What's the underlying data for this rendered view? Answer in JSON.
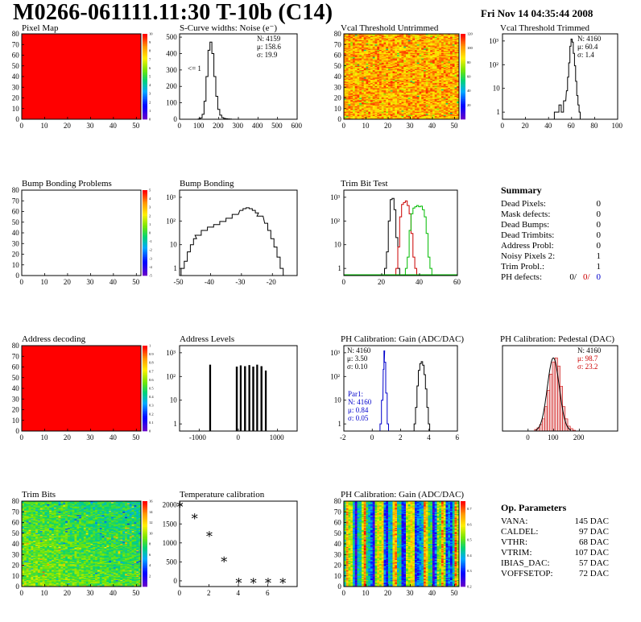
{
  "header": {
    "title": "M0266-061111.11:30 T-10b (C14)",
    "date": "Fri Nov 14 04:35:44 2008"
  },
  "chart_data": [
    {
      "type": "heatmap",
      "title": "Pixel Map",
      "xlim": [
        0,
        52
      ],
      "ylim": [
        0,
        80
      ],
      "xticks": [
        0,
        10,
        20,
        30,
        40,
        50
      ],
      "yticks": [
        0,
        10,
        20,
        30,
        40,
        50,
        60,
        70,
        80
      ],
      "fill": "uniform",
      "value": 10,
      "zlim": [
        0,
        10
      ],
      "zticks": [
        0,
        1,
        2,
        3,
        4,
        5,
        6,
        7,
        8,
        9,
        10
      ]
    },
    {
      "type": "line",
      "title": "S-Curve widths: Noise (e⁻)",
      "xlim": [
        0,
        600
      ],
      "ylim": [
        0,
        520
      ],
      "xticks": [
        0,
        100,
        200,
        300,
        400,
        500,
        600
      ],
      "yticks": [
        0,
        100,
        200,
        300,
        400,
        500
      ],
      "series": [
        {
          "x": [
            90,
            100,
            110,
            120,
            130,
            140,
            150,
            160,
            170,
            180,
            190,
            200,
            210,
            220,
            230,
            240,
            250,
            260,
            270,
            280
          ],
          "y": [
            0,
            2,
            8,
            30,
            110,
            260,
            420,
            470,
            400,
            260,
            140,
            60,
            25,
            10,
            5,
            3,
            2,
            1,
            0,
            0
          ]
        }
      ],
      "annotation": "<= 1",
      "stats": {
        "N": "N: 4159",
        "mean": "μ: 158.6",
        "sigma": "σ: 19.9"
      }
    },
    {
      "type": "heatmap",
      "title": "Vcal Threshold Untrimmed",
      "xlim": [
        0,
        52
      ],
      "ylim": [
        0,
        80
      ],
      "xticks": [
        0,
        10,
        20,
        30,
        40,
        50
      ],
      "yticks": [
        0,
        10,
        20,
        30,
        40,
        50,
        60,
        70,
        80
      ],
      "fill": "noise_orange",
      "zlim": [
        0,
        120
      ],
      "zticks": [
        20,
        40,
        60,
        80,
        100,
        120
      ]
    },
    {
      "type": "line",
      "title": "Vcal Threshold Trimmed",
      "log": true,
      "xlim": [
        0,
        100
      ],
      "ylim": [
        0.5,
        2000
      ],
      "xticks": [
        0,
        20,
        40,
        60,
        80,
        100
      ],
      "yticks": [
        1,
        10,
        100,
        1000
      ],
      "ytick_labels": [
        "1",
        "10",
        "10²",
        "10³"
      ],
      "series": [
        {
          "x": [
            46,
            48,
            50,
            52,
            54,
            56,
            57,
            58,
            59,
            60,
            61,
            62,
            63,
            64,
            65,
            66,
            67,
            68
          ],
          "y": [
            1,
            1,
            2,
            1,
            3,
            8,
            30,
            120,
            600,
            1200,
            900,
            300,
            90,
            20,
            5,
            2,
            1,
            0
          ]
        }
      ],
      "stats": {
        "N": "N: 4160",
        "mean": "μ: 60.4",
        "sigma": "σ:  1.4"
      }
    },
    {
      "type": "heatmap",
      "title": "Bump Bonding Problems",
      "xlim": [
        0,
        52
      ],
      "ylim": [
        0,
        80
      ],
      "xticks": [
        0,
        10,
        20,
        30,
        40,
        50
      ],
      "yticks": [
        0,
        10,
        20,
        30,
        40,
        50,
        60,
        70,
        80
      ],
      "fill": "empty",
      "zlim": [
        -5,
        5
      ],
      "zticks": [
        -5,
        -4,
        -3,
        -2,
        -1,
        0,
        1,
        2,
        3,
        4,
        5
      ]
    },
    {
      "type": "line",
      "title": "Bump Bonding",
      "log": true,
      "xlim": [
        -50,
        -12
      ],
      "ylim": [
        0.5,
        2000
      ],
      "xticks": [
        -50,
        -40,
        -30,
        -20
      ],
      "yticks": [
        1,
        10,
        100,
        1000
      ],
      "ytick_labels": [
        "1",
        "10",
        "10²",
        "10³"
      ],
      "series": [
        {
          "x": [
            -49,
            -48,
            -47,
            -46,
            -45,
            -44,
            -42,
            -40,
            -38,
            -36,
            -34,
            -32,
            -30,
            -29,
            -28,
            -27,
            -26,
            -25,
            -24,
            -22,
            -21,
            -20,
            -19,
            -18,
            -17,
            -16
          ],
          "y": [
            1,
            2,
            5,
            10,
            18,
            25,
            40,
            55,
            70,
            95,
            130,
            190,
            280,
            330,
            360,
            330,
            280,
            220,
            160,
            80,
            40,
            18,
            8,
            3,
            1,
            0
          ]
        }
      ]
    },
    {
      "type": "line",
      "title": "Trim Bit Test",
      "log": true,
      "xlim": [
        0,
        60
      ],
      "ylim": [
        0.5,
        2000
      ],
      "xticks": [
        0,
        20,
        40,
        60
      ],
      "yticks": [
        1,
        10,
        100,
        1000
      ],
      "ytick_labels": [
        "1",
        "10",
        "10²",
        "10³"
      ],
      "series": [
        {
          "color": "#000000",
          "x": [
            22,
            23,
            24,
            25,
            26,
            27,
            28,
            29
          ],
          "y": [
            1,
            5,
            100,
            800,
            900,
            300,
            20,
            1
          ]
        },
        {
          "color": "#cc0000",
          "x": [
            28,
            29,
            30,
            31,
            32,
            33,
            34,
            35,
            36,
            37,
            38
          ],
          "y": [
            1,
            8,
            150,
            500,
            600,
            700,
            450,
            200,
            30,
            3,
            1
          ]
        },
        {
          "color": "#00bb00",
          "x": [
            33,
            34,
            35,
            36,
            37,
            38,
            39,
            40,
            41,
            42,
            43,
            44,
            45,
            46
          ],
          "y": [
            1,
            3,
            40,
            200,
            350,
            400,
            450,
            400,
            420,
            300,
            150,
            30,
            3,
            1
          ]
        }
      ],
      "baseline_color": "#00bb00"
    },
    {
      "type": "table",
      "title": "Summary",
      "rows": [
        {
          "label": "Dead Pixels:",
          "value": "0"
        },
        {
          "label": "Mask defects:",
          "value": "0"
        },
        {
          "label": "Dead Bumps:",
          "value": "0"
        },
        {
          "label": "Dead Trimbits:",
          "value": "0"
        },
        {
          "label": "Address Probl:",
          "value": "0"
        },
        {
          "label": "Noisy Pixels 2:",
          "value": "1"
        },
        {
          "label": "Trim Probl.:",
          "value": "1"
        },
        {
          "label": "PH defects:",
          "values": [
            "0/",
            "0/",
            "0"
          ],
          "colors": [
            "#000000",
            "#cc0000",
            "#0000cc"
          ]
        }
      ]
    },
    {
      "type": "heatmap",
      "title": "Address decoding",
      "xlim": [
        0,
        52
      ],
      "ylim": [
        0,
        80
      ],
      "xticks": [
        0,
        10,
        20,
        30,
        40,
        50
      ],
      "yticks": [
        0,
        10,
        20,
        30,
        40,
        50,
        60,
        70,
        80
      ],
      "fill": "uniform",
      "value": 1,
      "zlim": [
        0,
        1
      ],
      "zticks": [
        0,
        0.1,
        0.2,
        0.3,
        0.4,
        0.5,
        0.6,
        0.7,
        0.8,
        0.9,
        1
      ]
    },
    {
      "type": "line",
      "title": "Address Levels",
      "log": true,
      "xlim": [
        -1500,
        1500
      ],
      "ylim": [
        0.5,
        2000
      ],
      "xticks": [
        -1000,
        0,
        1000
      ],
      "yticks": [
        1,
        10,
        100,
        1000
      ],
      "ytick_labels": [
        "1",
        "10",
        "10²",
        "10³"
      ],
      "spikes": [
        {
          "x": -720,
          "w": 22,
          "y": 300
        },
        {
          "x": -40,
          "w": 25,
          "y": 250
        },
        {
          "x": 60,
          "w": 22,
          "y": 280
        },
        {
          "x": 170,
          "w": 25,
          "y": 260
        },
        {
          "x": 280,
          "w": 22,
          "y": 290
        },
        {
          "x": 380,
          "w": 25,
          "y": 250
        },
        {
          "x": 480,
          "w": 22,
          "y": 300
        },
        {
          "x": 590,
          "w": 25,
          "y": 260
        },
        {
          "x": 700,
          "w": 22,
          "y": 170
        }
      ]
    },
    {
      "type": "line",
      "title": "PH Calibration: Gain (ADC/DAC)",
      "log": true,
      "xlim": [
        -2,
        6
      ],
      "ylim": [
        0.5,
        2000
      ],
      "xticks": [
        -2,
        0,
        2,
        4,
        6
      ],
      "yticks": [
        1,
        10,
        100,
        1000
      ],
      "ytick_labels": [
        "1",
        "10",
        "10²",
        "10³"
      ],
      "series": [
        {
          "color": "#000000",
          "x": [
            3.0,
            3.1,
            3.2,
            3.3,
            3.4,
            3.5,
            3.6,
            3.7,
            3.8,
            3.9,
            4.0
          ],
          "y": [
            1,
            5,
            40,
            180,
            350,
            420,
            300,
            120,
            30,
            5,
            1
          ]
        },
        {
          "color": "#0000cc",
          "x": [
            0.6,
            0.7,
            0.8,
            0.85,
            0.9,
            1.0,
            1.1
          ],
          "y": [
            1,
            10,
            200,
            1200,
            400,
            20,
            1
          ]
        }
      ],
      "stats": {
        "N": "N: 4160",
        "mean": "μ: 3.50",
        "sigma": "σ: 0.10"
      },
      "stats2": {
        "label": "Par1:",
        "N": "N: 4160",
        "mean": "μ: 0.84",
        "sigma": "σ: 0.05",
        "color": "#0000cc"
      }
    },
    {
      "type": "bar",
      "title": "PH Calibration: Pedestal (DAC)",
      "xlim": [
        -100,
        350
      ],
      "ylim": [
        0,
        105
      ],
      "xticks": [
        0,
        100,
        200
      ],
      "yticks": [],
      "series": [
        {
          "x": [
            30,
            40,
            50,
            60,
            70,
            80,
            90,
            100,
            110,
            120,
            130,
            140,
            150,
            160,
            170,
            180
          ],
          "y": [
            2,
            4,
            8,
            15,
            30,
            50,
            70,
            85,
            90,
            80,
            55,
            30,
            15,
            6,
            3,
            1
          ]
        }
      ],
      "stats": {
        "N": "N: 4160",
        "mean": "μ: 98.7",
        "sigma": "σ: 23.2"
      },
      "stats_colors": [
        "#000000",
        "#cc0000",
        "#cc0000"
      ]
    },
    {
      "type": "heatmap",
      "title": "Trim Bits",
      "xlim": [
        0,
        52
      ],
      "ylim": [
        0,
        80
      ],
      "xticks": [
        0,
        10,
        20,
        30,
        40,
        50
      ],
      "yticks": [
        0,
        10,
        20,
        30,
        40,
        50,
        60,
        70,
        80
      ],
      "fill": "noise_green",
      "zlim": [
        0,
        16
      ],
      "zticks": [
        2,
        4,
        6,
        8,
        10,
        12,
        14,
        16
      ]
    },
    {
      "type": "scatter",
      "title": "Temperature calibration",
      "xlim": [
        0,
        8
      ],
      "ylim": [
        -150,
        2100
      ],
      "xticks": [
        0,
        2,
        4,
        6
      ],
      "yticks": [
        0,
        500,
        1000,
        1500,
        2000
      ],
      "x": [
        0,
        1,
        2,
        3,
        4,
        5,
        6,
        7
      ],
      "y": [
        2000,
        1700,
        1230,
        560,
        0,
        0,
        0,
        0
      ]
    },
    {
      "type": "heatmap",
      "title": "PH Calibration: Gain (ADC/DAC)",
      "xlim": [
        0,
        52
      ],
      "ylim": [
        0,
        80
      ],
      "xticks": [
        0,
        10,
        20,
        30,
        40,
        50
      ],
      "yticks": [
        0,
        10,
        20,
        30,
        40,
        50,
        60,
        70,
        80
      ],
      "fill": "stripes",
      "zlim": [
        0.2,
        0.75
      ],
      "zticks": [
        0.2,
        0.3,
        0.4,
        0.5,
        0.6,
        0.7
      ]
    },
    {
      "type": "table",
      "title": "Op. Parameters",
      "rows": [
        {
          "label": "VANA:",
          "value": "145 DAC"
        },
        {
          "label": "CALDEL:",
          "value": "97 DAC"
        },
        {
          "label": "VTHR:",
          "value": "68 DAC"
        },
        {
          "label": "VTRIM:",
          "value": "107 DAC"
        },
        {
          "label": "IBIAS_DAC:",
          "value": "57 DAC"
        },
        {
          "label": "VOFFSETOP:",
          "value": "72 DAC"
        }
      ]
    }
  ]
}
